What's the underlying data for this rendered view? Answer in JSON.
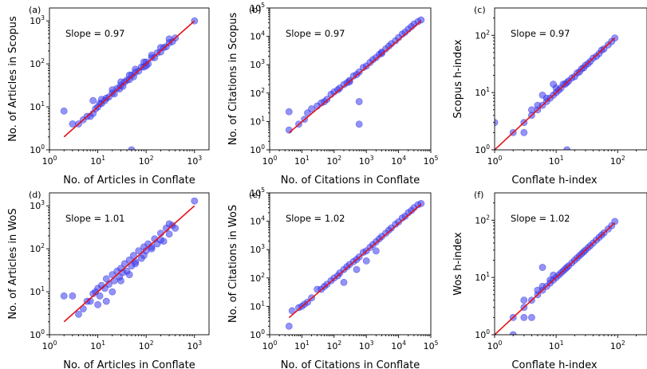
{
  "chart_data": [
    {
      "type": "scatter",
      "id": "a",
      "letter": "(a)",
      "annotation": "Slope = 0.97",
      "xlabel": "No. of Articles in Conflate",
      "ylabel": "No. of Articles in Scopus",
      "xscale": "log",
      "yscale": "log",
      "xlim": [
        1,
        2000
      ],
      "ylim": [
        1,
        2000
      ],
      "xticks": [
        1,
        10,
        100,
        1000
      ],
      "yticks": [
        1,
        10,
        100,
        1000
      ],
      "fit_slope": 0.97,
      "fit_line": {
        "x": [
          2,
          1000
        ],
        "y": [
          2,
          1000
        ]
      },
      "x": [
        2,
        3,
        4,
        5,
        6,
        7,
        8,
        9,
        10,
        11,
        12,
        14,
        15,
        17,
        20,
        22,
        25,
        28,
        30,
        33,
        36,
        40,
        45,
        50,
        55,
        60,
        70,
        80,
        90,
        100,
        110,
        130,
        150,
        170,
        200,
        230,
        260,
        300,
        350,
        400,
        1000,
        8,
        12,
        20,
        30,
        45,
        60,
        90,
        130,
        200,
        300,
        50,
        100
      ],
      "y": [
        8,
        4,
        4,
        5,
        6,
        6,
        7,
        9,
        10,
        12,
        12,
        14,
        16,
        17,
        21,
        20,
        27,
        26,
        32,
        30,
        38,
        42,
        43,
        55,
        50,
        64,
        68,
        85,
        85,
        110,
        100,
        140,
        140,
        180,
        190,
        240,
        250,
        310,
        330,
        400,
        1000,
        14,
        15,
        25,
        38,
        55,
        75,
        110,
        160,
        240,
        380,
        1,
        90
      ]
    },
    {
      "type": "scatter",
      "id": "b",
      "letter": "(b)",
      "annotation": "Slope = 0.97",
      "xlabel": "No. of Citations in Conflate",
      "ylabel": "No. of Citations in Scopus",
      "xscale": "log",
      "yscale": "log",
      "xlim": [
        1,
        100000
      ],
      "ylim": [
        1,
        100000
      ],
      "xticks": [
        1,
        10,
        100,
        1000,
        10000,
        100000
      ],
      "yticks": [
        1,
        10,
        100,
        1000,
        10000,
        100000
      ],
      "fit_slope": 0.97,
      "fit_line": {
        "x": [
          4,
          50000
        ],
        "y": [
          4,
          35000
        ]
      },
      "x": [
        4,
        4,
        8,
        12,
        15,
        20,
        30,
        40,
        50,
        60,
        80,
        100,
        130,
        150,
        200,
        250,
        300,
        400,
        500,
        600,
        800,
        1000,
        1300,
        1600,
        2000,
        2500,
        3000,
        4000,
        5000,
        6000,
        8000,
        10000,
        13000,
        16000,
        20000,
        25000,
        30000,
        40000,
        50000,
        600,
        600,
        300,
        3000
      ],
      "y": [
        5,
        22,
        8,
        12,
        20,
        28,
        35,
        45,
        50,
        60,
        90,
        110,
        130,
        150,
        200,
        230,
        280,
        400,
        450,
        550,
        800,
        900,
        1200,
        1500,
        1800,
        2300,
        2800,
        3600,
        4500,
        5500,
        7000,
        9000,
        12000,
        14000,
        18000,
        22000,
        27000,
        33000,
        38000,
        8,
        50,
        250,
        2500
      ]
    },
    {
      "type": "scatter",
      "id": "c",
      "letter": "(c)",
      "annotation": "Slope = 0.97",
      "xlabel": "Conflate h-index",
      "ylabel": "Scopus h-index",
      "xscale": "log",
      "yscale": "log",
      "xlim": [
        1,
        300
      ],
      "ylim": [
        1,
        300
      ],
      "xticks": [
        1,
        10,
        100
      ],
      "yticks": [
        1,
        10,
        100
      ],
      "fit_slope": 0.97,
      "fit_line": {
        "x": [
          1,
          90
        ],
        "y": [
          1,
          90
        ]
      },
      "x": [
        1,
        2,
        3,
        3,
        4,
        4,
        5,
        5,
        6,
        7,
        7,
        8,
        9,
        10,
        10,
        11,
        12,
        13,
        14,
        15,
        16,
        18,
        20,
        22,
        24,
        26,
        28,
        30,
        33,
        36,
        40,
        45,
        50,
        55,
        60,
        70,
        80,
        90,
        15,
        9,
        6
      ],
      "y": [
        3,
        2,
        2,
        3,
        4,
        5,
        5,
        6,
        6,
        7,
        8,
        8,
        9,
        10,
        12,
        11,
        12,
        14,
        14,
        15,
        16,
        18,
        19,
        22,
        23,
        26,
        27,
        30,
        32,
        35,
        40,
        43,
        48,
        55,
        58,
        68,
        78,
        90,
        1,
        14,
        9
      ]
    },
    {
      "type": "scatter",
      "id": "d",
      "letter": "(d)",
      "annotation": "Slope = 1.01",
      "xlabel": "No. of Articles in Conflate",
      "ylabel": "No. of Articles in WoS",
      "xscale": "log",
      "yscale": "log",
      "xlim": [
        1,
        2000
      ],
      "ylim": [
        1,
        2000
      ],
      "xticks": [
        1,
        10,
        100,
        1000
      ],
      "yticks": [
        1,
        10,
        100,
        1000
      ],
      "fit_slope": 1.01,
      "fit_line": {
        "x": [
          2,
          1000
        ],
        "y": [
          2,
          1000
        ]
      },
      "x": [
        2,
        3,
        4,
        5,
        6,
        7,
        8,
        9,
        10,
        11,
        12,
        14,
        15,
        17,
        20,
        22,
        25,
        28,
        30,
        33,
        36,
        40,
        45,
        50,
        55,
        60,
        70,
        80,
        90,
        100,
        110,
        130,
        150,
        170,
        200,
        230,
        260,
        300,
        350,
        400,
        1000,
        10,
        15,
        20,
        30,
        45,
        60,
        90,
        130,
        200,
        300
      ],
      "y": [
        8,
        8,
        3,
        4,
        6,
        6,
        9,
        10,
        12,
        8,
        14,
        12,
        20,
        15,
        25,
        18,
        30,
        22,
        35,
        28,
        45,
        30,
        55,
        40,
        70,
        50,
        90,
        60,
        110,
        90,
        130,
        110,
        170,
        130,
        230,
        150,
        300,
        220,
        350,
        300,
        1300,
        5,
        6,
        10,
        18,
        25,
        45,
        70,
        100,
        160,
        380
      ]
    },
    {
      "type": "scatter",
      "id": "e",
      "letter": "(e)",
      "annotation": "Slope = 1.02",
      "xlabel": "No. of Citations in Conflate",
      "ylabel": "No. of Citations in WoS",
      "xscale": "log",
      "yscale": "log",
      "xlim": [
        1,
        100000
      ],
      "ylim": [
        1,
        100000
      ],
      "xticks": [
        1,
        10,
        100,
        1000,
        10000,
        100000
      ],
      "yticks": [
        1,
        10,
        100,
        1000,
        10000,
        100000
      ],
      "fit_slope": 1.02,
      "fit_line": {
        "x": [
          4,
          50000
        ],
        "y": [
          4,
          40000
        ]
      },
      "x": [
        4,
        5,
        8,
        10,
        12,
        15,
        20,
        30,
        40,
        50,
        60,
        80,
        100,
        130,
        150,
        200,
        250,
        300,
        400,
        500,
        600,
        800,
        1000,
        1300,
        1600,
        2000,
        2500,
        3000,
        4000,
        5000,
        6000,
        8000,
        10000,
        13000,
        16000,
        20000,
        25000,
        30000,
        40000,
        50000,
        200,
        500,
        1000,
        2000
      ],
      "y": [
        2,
        7,
        9,
        10,
        12,
        14,
        20,
        40,
        40,
        50,
        60,
        80,
        100,
        120,
        150,
        200,
        250,
        300,
        380,
        450,
        550,
        800,
        900,
        1200,
        1500,
        1900,
        2400,
        2900,
        3800,
        4800,
        5800,
        7800,
        9500,
        13000,
        15000,
        20000,
        24000,
        30000,
        38000,
        42000,
        70,
        200,
        400,
        900
      ]
    },
    {
      "type": "scatter",
      "id": "f",
      "letter": "(f)",
      "annotation": "Slope = 1.02",
      "xlabel": "Conflate h-index",
      "ylabel": "Wos h-index",
      "xscale": "log",
      "yscale": "log",
      "xlim": [
        1,
        300
      ],
      "ylim": [
        1,
        300
      ],
      "xticks": [
        1,
        10,
        100
      ],
      "yticks": [
        1,
        10,
        100
      ],
      "fit_slope": 1.02,
      "fit_line": {
        "x": [
          1,
          90
        ],
        "y": [
          1,
          90
        ]
      },
      "x": [
        2,
        2,
        3,
        3,
        3,
        4,
        4,
        5,
        5,
        6,
        6,
        7,
        8,
        8,
        9,
        10,
        11,
        12,
        13,
        14,
        15,
        16,
        18,
        20,
        22,
        24,
        26,
        28,
        30,
        33,
        36,
        40,
        45,
        50,
        55,
        60,
        70,
        80,
        90,
        6,
        9
      ],
      "y": [
        1,
        2,
        2,
        3,
        4,
        2,
        4,
        5,
        6,
        6,
        7,
        7,
        8,
        9,
        9,
        10,
        11,
        12,
        13,
        14,
        15,
        16,
        18,
        20,
        22,
        24,
        26,
        28,
        30,
        33,
        36,
        40,
        45,
        50,
        55,
        60,
        70,
        80,
        95,
        15,
        11
      ]
    }
  ]
}
